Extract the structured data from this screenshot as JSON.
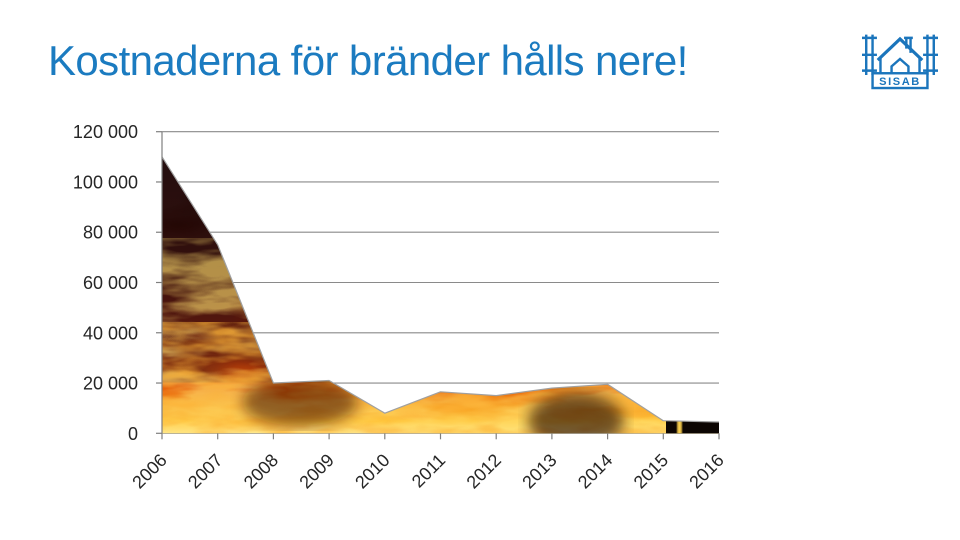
{
  "slide": {
    "title": "Kostnaderna för bränder hålls nere!",
    "title_color": "#1B7BC0",
    "background": "#FFFFFF"
  },
  "logo": {
    "name": "SISAB",
    "label": "SISAB",
    "color": "#1B75BC"
  },
  "chart_data": {
    "type": "area",
    "title": "",
    "categories": [
      "2006",
      "2007",
      "2008",
      "2009",
      "2010",
      "2011",
      "2012",
      "2013",
      "2014",
      "2015",
      "2016"
    ],
    "values": [
      110000,
      75000,
      20000,
      21000,
      8000,
      16500,
      15000,
      18000,
      19500,
      5000,
      4500
    ],
    "xlabel": "",
    "ylabel": "",
    "ylim": [
      0,
      120000
    ],
    "y_tick_step": 20000,
    "y_tick_labels": [
      "0",
      "20 000",
      "40 000",
      "60 000",
      "80 000",
      "100 000",
      "120 000"
    ],
    "x_tick_rotation_deg": -45,
    "grid": true,
    "legend": "none",
    "fill": "fire-photo-texture",
    "fire_palette": [
      "#0B0404",
      "#2A0703",
      "#6E1504",
      "#B63806",
      "#E8650D",
      "#F69A1B",
      "#FFC63D",
      "#FFE98E"
    ],
    "gridline_color": "#8A8A8A",
    "tick_label_color": "#262626"
  }
}
